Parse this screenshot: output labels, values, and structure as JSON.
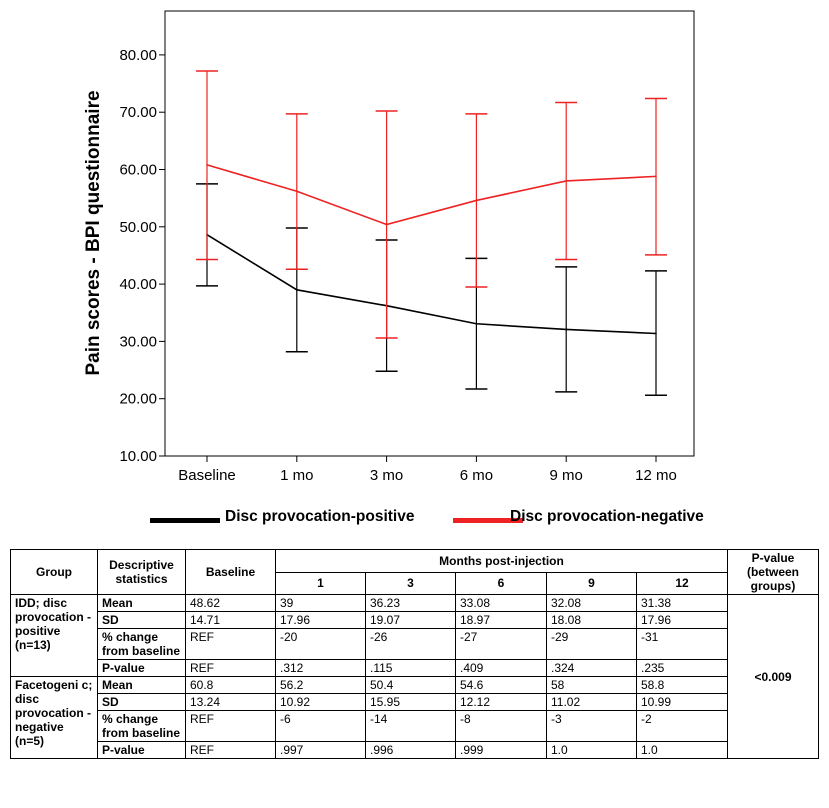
{
  "chart_data": {
    "type": "line",
    "ylabel": "Pain scores - BPI questionnaire",
    "categories": [
      "Baseline",
      "1 mo",
      "3 mo",
      "6 mo",
      "9 mo",
      "12 mo"
    ],
    "ylim": [
      10,
      85
    ],
    "yticks": [
      "10.00",
      "20.00",
      "30.00",
      "40.00",
      "50.00",
      "60.00",
      "70.00",
      "80.00"
    ],
    "series": [
      {
        "name": "Disc provocation-positive",
        "color": "#000000",
        "values": [
          48.62,
          39,
          36.23,
          33.08,
          32.08,
          31.38
        ],
        "upper": [
          57.5,
          49.8,
          47.7,
          44.5,
          43.0,
          42.3
        ],
        "lower": [
          39.7,
          28.2,
          24.8,
          21.7,
          21.2,
          20.6
        ]
      },
      {
        "name": "Disc provocation-negative",
        "color": "#ee2222",
        "values": [
          60.8,
          56.2,
          50.4,
          54.6,
          58,
          58.8
        ],
        "upper": [
          77.2,
          69.7,
          70.2,
          69.7,
          71.7,
          72.4
        ],
        "lower": [
          44.3,
          42.6,
          30.6,
          39.5,
          44.3,
          45.1
        ]
      }
    ]
  },
  "table": {
    "col_group": "Group",
    "col_desc": "Descriptive statistics",
    "col_baseline": "Baseline",
    "col_months": "Months post-injection",
    "col_pvalue": "P-value (between groups)",
    "months": [
      "1",
      "3",
      "6",
      "9",
      "12"
    ],
    "group1": {
      "name": "IDD; disc provocation -positive (n=13)",
      "rows": [
        {
          "label": "Mean",
          "baseline": "48.62",
          "cells": [
            "39",
            "36.23",
            "33.08",
            "32.08",
            "31.38"
          ]
        },
        {
          "label": "SD",
          "baseline": "14.71",
          "cells": [
            "17.96",
            "19.07",
            "18.97",
            "18.08",
            "17.96"
          ]
        },
        {
          "label": "% change from baseline",
          "baseline": "REF",
          "cells": [
            "-20",
            "-26",
            "-27",
            "-29",
            "-31"
          ]
        },
        {
          "label": "P-value",
          "baseline": "REF",
          "cells": [
            ".312",
            ".115",
            ".409",
            ".324",
            ".235"
          ]
        }
      ]
    },
    "group2": {
      "name": "Facetogeni c; disc provocation -negative (n=5)",
      "rows": [
        {
          "label": "Mean",
          "baseline": "60.8",
          "cells": [
            "56.2",
            "50.4",
            "54.6",
            "58",
            "58.8"
          ]
        },
        {
          "label": "SD",
          "baseline": "13.24",
          "cells": [
            "10.92",
            "15.95",
            "12.12",
            "11.02",
            "10.99"
          ]
        },
        {
          "label": "% change from baseline",
          "baseline": "REF",
          "cells": [
            "-6",
            "-14",
            "-8",
            "-3",
            "-2"
          ]
        },
        {
          "label": "P-value",
          "baseline": "REF",
          "cells": [
            ".997",
            ".996",
            ".999",
            "1.0",
            "1.0"
          ]
        }
      ]
    },
    "between_groups_pvalue": "<0.009"
  }
}
